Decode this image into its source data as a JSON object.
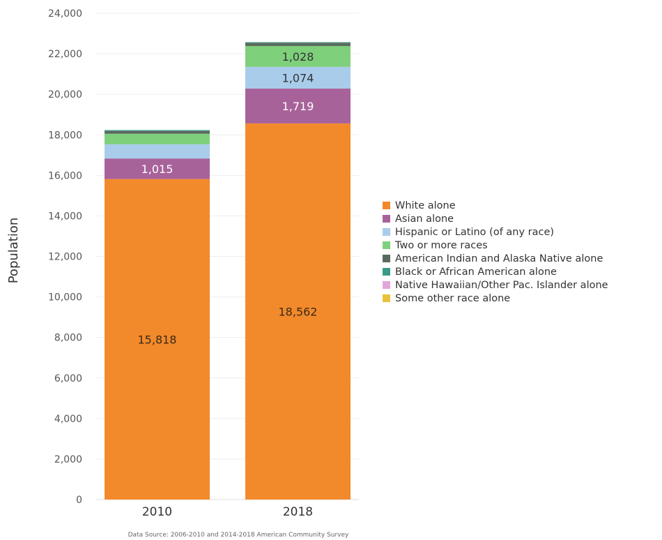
{
  "chart_data": {
    "type": "stacked-bar",
    "categories": [
      "2010",
      "2018"
    ],
    "ylabel": "Population",
    "ylim": [
      0,
      24000
    ],
    "yticks": [
      "0",
      "2,000",
      "4,000",
      "6,000",
      "8,000",
      "10,000",
      "12,000",
      "14,000",
      "16,000",
      "18,000",
      "20,000",
      "22,000",
      "24,000"
    ],
    "ytick_values": [
      0,
      2000,
      4000,
      6000,
      8000,
      10000,
      12000,
      14000,
      16000,
      18000,
      20000,
      22000,
      24000
    ],
    "legend_position": "right",
    "series": [
      {
        "name": "White alone",
        "color": "#F28A2B",
        "values": [
          15818,
          18562
        ],
        "labels": [
          "15,818",
          "18,562"
        ],
        "label_color": "#3a2a1a"
      },
      {
        "name": "Asian alone",
        "color": "#A8629A",
        "values": [
          1015,
          1719
        ],
        "labels": [
          "1,015",
          "1,719"
        ],
        "label_color": "#ffffff"
      },
      {
        "name": "Hispanic or Latino (of any race)",
        "color": "#A9CCEB",
        "values": [
          700,
          1074
        ],
        "labels": [
          "",
          "1,074"
        ],
        "label_color": "#333333"
      },
      {
        "name": "Two or more races",
        "color": "#7ED07B",
        "values": [
          520,
          1028
        ],
        "labels": [
          "",
          "1,028"
        ],
        "label_color": "#333333"
      },
      {
        "name": "American Indian and Alaska Native alone",
        "color": "#5A6B5E",
        "values": [
          140,
          160
        ],
        "labels": [
          "",
          ""
        ],
        "label_color": "#ffffff"
      },
      {
        "name": "Black or African American alone",
        "color": "#3A9A8A",
        "values": [
          40,
          30
        ],
        "labels": [
          "",
          ""
        ],
        "label_color": "#ffffff"
      },
      {
        "name": "Native Hawaiian/Other Pac. Islander alone",
        "color": "#E3A6DA",
        "values": [
          0,
          0
        ],
        "labels": [
          "",
          ""
        ],
        "label_color": "#ffffff"
      },
      {
        "name": "Some other race alone",
        "color": "#E8C23A",
        "values": [
          0,
          0
        ],
        "labels": [
          "",
          ""
        ],
        "label_color": "#ffffff"
      }
    ],
    "source": "Data Source: 2006-2010 and 2014-2018 American Community Survey"
  }
}
